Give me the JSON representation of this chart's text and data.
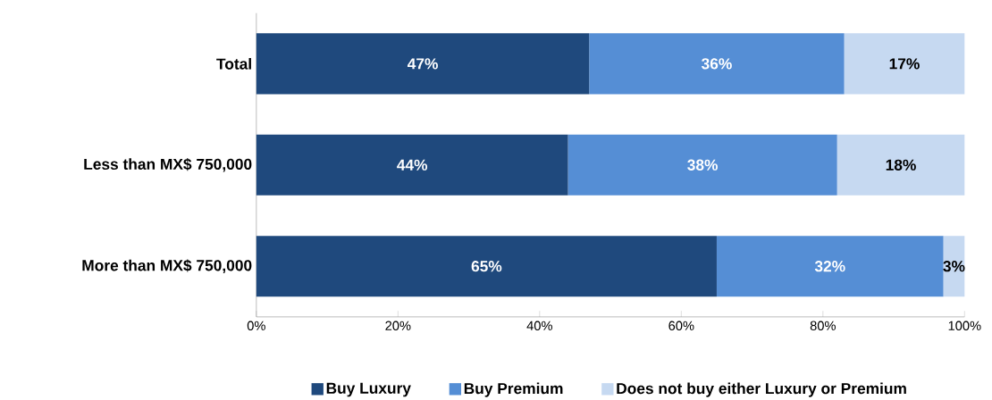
{
  "chart_data": {
    "type": "bar",
    "orientation": "horizontal",
    "stacked": true,
    "legend": "bottom",
    "categories": [
      "Total",
      "Less than MX$ 750,000",
      "More than MX$ 750,000"
    ],
    "series": [
      {
        "name": "Buy Luxury",
        "color": "#1f497d",
        "values": [
          47,
          44,
          65
        ],
        "value_labels": [
          "47%",
          "44%",
          "65%"
        ]
      },
      {
        "name": "Buy Premium",
        "color": "#558ed5",
        "values": [
          36,
          38,
          32
        ],
        "value_labels": [
          "36%",
          "38%",
          "32%"
        ]
      },
      {
        "name": "Does not buy either Luxury or Premium",
        "color": "#c6d9f1",
        "values": [
          17,
          18,
          3
        ],
        "value_labels": [
          "17%",
          "18%",
          "3%"
        ]
      }
    ],
    "xlim": [
      0,
      100
    ],
    "xticks": [
      {
        "value": 0,
        "label": "0%"
      },
      {
        "value": 20,
        "label": "20%"
      },
      {
        "value": 40,
        "label": "40%"
      },
      {
        "value": 60,
        "label": "60%"
      },
      {
        "value": 80,
        "label": "80%"
      },
      {
        "value": 100,
        "label": "100%"
      }
    ]
  }
}
